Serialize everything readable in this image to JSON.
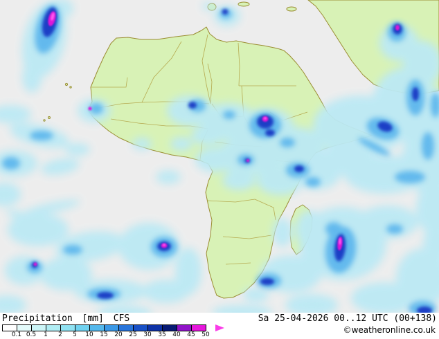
{
  "map": {
    "region_label": "Africa",
    "ocean_color": "#ededed",
    "land_color": "#d8f2b6",
    "coast_color": "#9a8c30",
    "border_color": "#b4a64a"
  },
  "footer": {
    "parameter_label": "Precipitation",
    "unit_label": "[mm]",
    "model_label": "CFS",
    "valid_label": "Sa 25-04-2026 00..12 UTC (00+138)",
    "copyright_label": "©weatheronline.co.uk"
  },
  "legend": {
    "unit": "mm",
    "tick_labels": [
      "0.1",
      "0.5",
      "1",
      "2",
      "5",
      "10",
      "15",
      "20",
      "25",
      "30",
      "35",
      "40",
      "45",
      "50"
    ],
    "cell_colors": [
      "#ffffff",
      "#e4fbfb",
      "#ccf5f7",
      "#b0edf4",
      "#90e2f2",
      "#70d2f0",
      "#54b8ec",
      "#3a98e6",
      "#2874da",
      "#1850c6",
      "#0e32a6",
      "#071a74",
      "#9014c8",
      "#e616dc"
    ],
    "arrow_color": "#fa3ce8"
  }
}
